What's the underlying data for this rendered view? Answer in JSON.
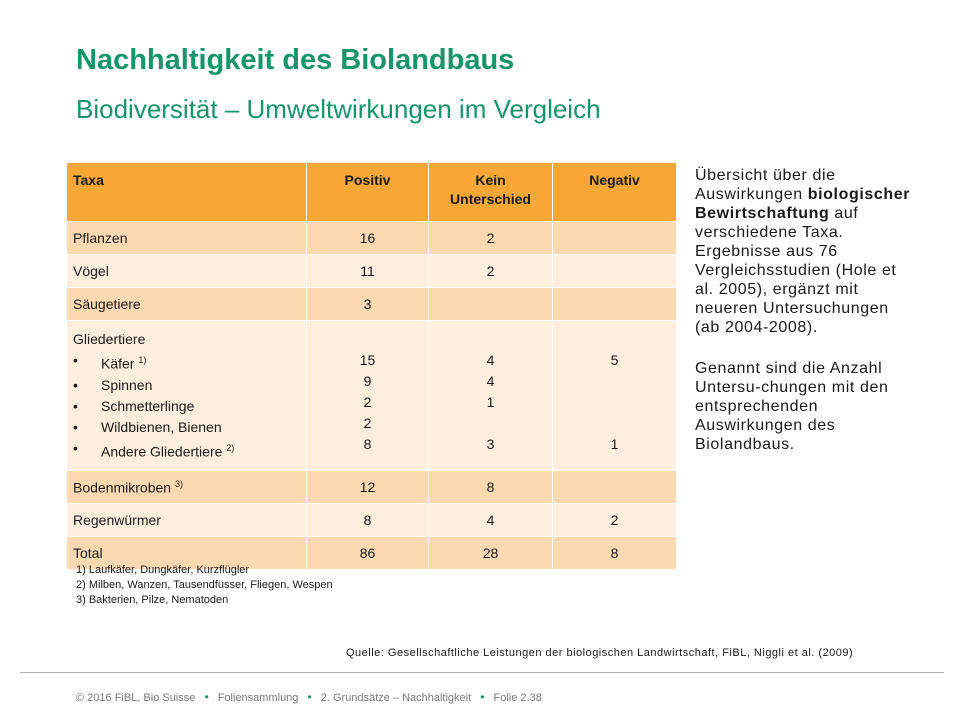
{
  "title": "Nachhaltigkeit des Biolandbaus",
  "subtitle": "Biodiversität – Umweltwirkungen im Vergleich",
  "table": {
    "headers": [
      "Taxa",
      "Positiv",
      "Kein Unterschied",
      "Negativ"
    ],
    "rows": [
      {
        "taxa": "Pflanzen",
        "positiv": "16",
        "kein": "2",
        "negativ": ""
      },
      {
        "taxa": "Vögel",
        "positiv": "11",
        "kein": "2",
        "negativ": ""
      },
      {
        "taxa": "Säugetiere",
        "positiv": "3",
        "kein": "",
        "negativ": ""
      }
    ],
    "arthropods": {
      "label": "Gliedertiere",
      "items": [
        {
          "name": "Käfer",
          "note": "1)",
          "positiv": "15",
          "kein": "4",
          "negativ": "5"
        },
        {
          "name": "Spinnen",
          "note": "",
          "positiv": "9",
          "kein": "4",
          "negativ": ""
        },
        {
          "name": "Schmetterlinge",
          "note": "",
          "positiv": "2",
          "kein": "1",
          "negativ": ""
        },
        {
          "name": "Wildbienen, Bienen",
          "note": "",
          "positiv": "2",
          "kein": "",
          "negativ": ""
        },
        {
          "name": "Andere Gliedertiere",
          "note": "2)",
          "positiv": "8",
          "kein": "3",
          "negativ": "1"
        }
      ]
    },
    "rows_after": [
      {
        "taxa": "Bodenmikroben",
        "note": "3)",
        "positiv": "12",
        "kein": "8",
        "negativ": ""
      },
      {
        "taxa": "Regenwürmer",
        "note": "",
        "positiv": "8",
        "kein": "4",
        "negativ": "2"
      },
      {
        "taxa": "Total",
        "note": "",
        "positiv": "86",
        "kein": "28",
        "negativ": "8"
      }
    ]
  },
  "footnotes": [
    "1) Laufkäfer, Dungkäfer, Kurzflügler",
    "2) Milben, Wanzen, Tausendfüsser, Fliegen, Wespen",
    "3) Bakterien, Pilze, Nematoden"
  ],
  "side": {
    "p1_a": "Übersicht über die Auswirkungen ",
    "p1_b": "biologischer Bewirtschaftung",
    "p1_c": " auf verschiedene Taxa. Ergebnisse aus 76 Vergleichsstudien (Hole et al. 2005), ergänzt mit neueren Untersuchungen (ab 2004-2008).",
    "p2": "Genannt sind die Anzahl Untersu-chungen mit den entsprechenden Auswirkungen des Biolandbaus."
  },
  "source": "Quelle: Gesellschaftliche Leistungen der biologischen Landwirtschaft, FiBL, Niggli et al. (2009)",
  "footer": {
    "copyright": "© 2016 FiBL, Bio Suisse",
    "collection": "Foliensammlung",
    "chapter": "2. Grundsätze – Nachhaltigkeit",
    "slide": "Folie 2.38"
  },
  "colors": {
    "accent": "#16956b",
    "header": "#f7a735",
    "row_dark": "#fcd9b0",
    "row_light": "#fdeedd"
  }
}
